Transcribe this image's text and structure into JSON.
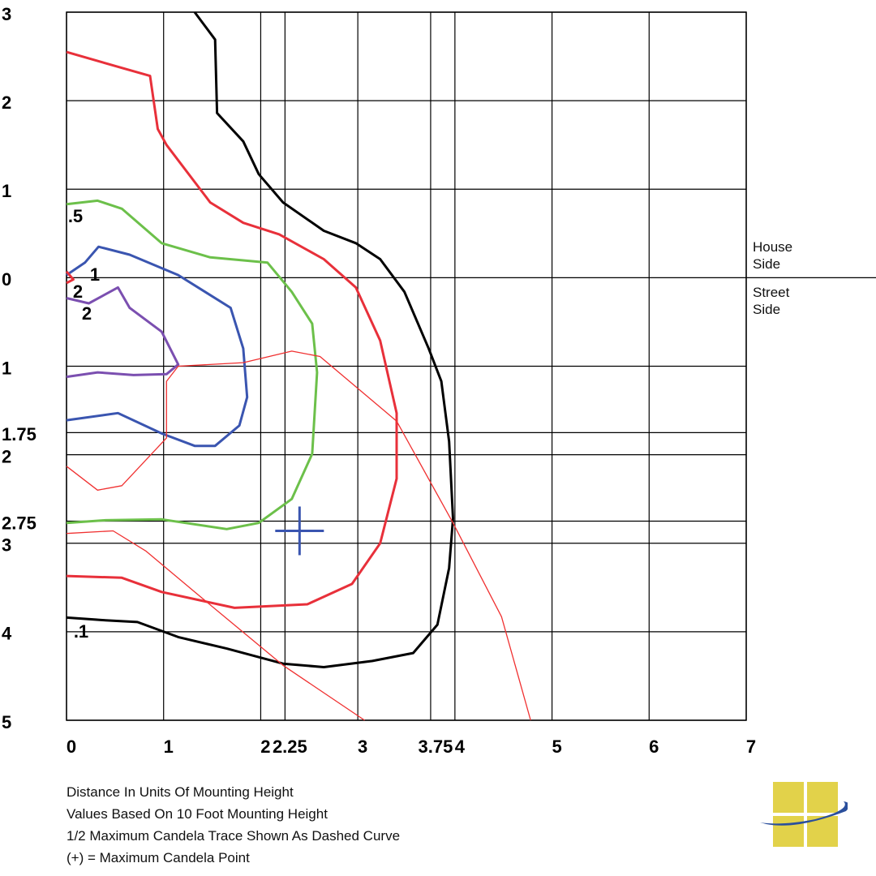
{
  "chart_data": {
    "type": "line",
    "xlim": [
      0,
      7
    ],
    "xticks": [
      0,
      1,
      2,
      2.25,
      3,
      3.75,
      4,
      5,
      6,
      7
    ],
    "ylim": [
      -5,
      3
    ],
    "yticks": [
      {
        "value": 3,
        "label": "3"
      },
      {
        "value": 2,
        "label": "2"
      },
      {
        "value": 1,
        "label": "1"
      },
      {
        "value": 0,
        "label": "0"
      },
      {
        "value": -1,
        "label": "1"
      },
      {
        "value": -1.75,
        "label": "1.75"
      },
      {
        "value": -2,
        "label": "2"
      },
      {
        "value": -2.75,
        "label": "2.75"
      },
      {
        "value": -3,
        "label": "3"
      },
      {
        "value": -4,
        "label": "4"
      },
      {
        "value": -5,
        "label": "5"
      }
    ],
    "grid": true,
    "house_label": "House Side",
    "street_label": "Street Side",
    "series": [
      {
        "name": ".1",
        "color": "#000000",
        "x": [
          1.32,
          1.53,
          1.55,
          1.82,
          1.98,
          2.23,
          2.65,
          2.98,
          3.23,
          3.48,
          3.73,
          3.86,
          3.94,
          3.98,
          3.94,
          3.82,
          3.57,
          3.15,
          2.65,
          2.23,
          1.65,
          1.15,
          0.73,
          0.4,
          0
        ],
        "y": [
          3.0,
          2.69,
          1.86,
          1.54,
          1.17,
          0.85,
          0.53,
          0.39,
          0.21,
          -0.16,
          -0.8,
          -1.17,
          -1.85,
          -2.72,
          -3.28,
          -3.92,
          -4.24,
          -4.33,
          -4.4,
          -4.36,
          -4.19,
          -4.06,
          -3.89,
          -3.87,
          -3.84
        ]
      },
      {
        "color": "#e8303a",
        "x": [
          0,
          0.57,
          0.86,
          0.94,
          1.03,
          1.48,
          1.82,
          2.19,
          2.65,
          2.98,
          3.23,
          3.4,
          3.4,
          3.23,
          2.94,
          2.48,
          1.73,
          0.98,
          0.57,
          0
        ],
        "y": [
          2.55,
          2.37,
          2.28,
          1.68,
          1.5,
          0.85,
          0.62,
          0.49,
          0.21,
          -0.11,
          -0.71,
          -1.53,
          -2.27,
          -3.0,
          -3.46,
          -3.69,
          -3.73,
          -3.55,
          -3.39,
          -3.37
        ]
      },
      {
        "name": ".5",
        "color": "#6cc04a",
        "x": [
          0,
          0.32,
          0.57,
          0.98,
          1.48,
          2.07,
          2.32,
          2.53,
          2.58,
          2.53,
          2.32,
          1.98,
          1.65,
          0.98,
          0.4,
          0
        ],
        "y": [
          0.83,
          0.87,
          0.78,
          0.39,
          0.23,
          0.17,
          -0.16,
          -0.52,
          -1.07,
          -1.99,
          -2.5,
          -2.77,
          -2.84,
          -2.73,
          -2.74,
          -2.77
        ]
      },
      {
        "name": "1",
        "color": "#3a55b0",
        "x": [
          0,
          0.19,
          0.33,
          0.65,
          1.15,
          1.69,
          1.82,
          1.86,
          1.78,
          1.53,
          1.32,
          0.98,
          0.53,
          0
        ],
        "y": [
          0.03,
          0.17,
          0.35,
          0.26,
          0.03,
          -0.34,
          -0.8,
          -1.35,
          -1.67,
          -1.9,
          -1.9,
          -1.76,
          -1.53,
          -1.61
        ]
      },
      {
        "name": "2",
        "color": "#e8303a",
        "x": [
          0,
          0.07,
          0
        ],
        "y": [
          0.07,
          -0.02,
          -0.06
        ]
      },
      {
        "name": "2",
        "color": "#7b4fb0",
        "x": [
          0,
          0.23,
          0.53,
          0.65,
          0.98,
          1.15,
          1.03,
          0.69,
          0.32,
          0
        ],
        "y": [
          -0.23,
          -0.29,
          -0.11,
          -0.34,
          -0.61,
          -0.98,
          -1.09,
          -1.1,
          -1.07,
          -1.12
        ]
      },
      {
        "color": "#f03030",
        "x": [
          0,
          0.32,
          0.57,
          1.03,
          1.03,
          1.15,
          1.82,
          2.32,
          2.61,
          3.4,
          3.98,
          4.48,
          4.78,
          null,
          0,
          0.48,
          0.82,
          1.32,
          2.23,
          3.07
        ],
        "y": [
          -2.13,
          -2.4,
          -2.35,
          -1.81,
          -1.17,
          -1.0,
          -0.96,
          -0.83,
          -0.89,
          -1.62,
          -2.77,
          -3.83,
          -5.0,
          null,
          -2.89,
          -2.86,
          -3.09,
          -3.55,
          -4.38,
          -5.0
        ]
      }
    ],
    "max_point": {
      "x": 2.4,
      "y": -2.86,
      "color": "#3a55b0"
    },
    "notes": [
      "Distance In Units Of Mounting Height",
      "Values Based On 10 Foot Mounting Height",
      "1/2 Maximum Candela Trace Shown As Dashed Curve",
      "(+) = Maximum Candela Point"
    ]
  }
}
